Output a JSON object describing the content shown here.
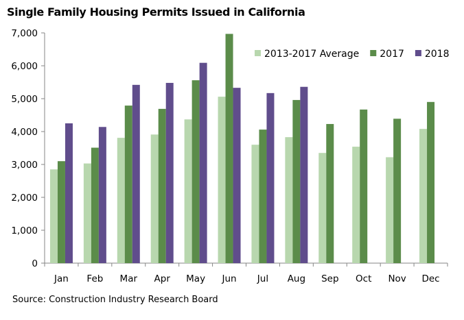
{
  "chart_data": {
    "type": "bar",
    "title": "Single Family Housing Permits Issued in California",
    "source": "Source: Construction Industry Research Board",
    "categories": [
      "Jan",
      "Feb",
      "Mar",
      "Apr",
      "May",
      "Jun",
      "Jul",
      "Aug",
      "Sep",
      "Oct",
      "Nov",
      "Dec"
    ],
    "series": [
      {
        "name": "2013-2017 Average",
        "color": "#b8d7ae",
        "values": [
          2850,
          3030,
          3810,
          3910,
          4370,
          5060,
          3600,
          3830,
          3350,
          3540,
          3220,
          4080
        ]
      },
      {
        "name": "2017",
        "color": "#5b8c4a",
        "values": [
          3100,
          3510,
          4790,
          4690,
          5560,
          6970,
          4060,
          4960,
          4230,
          4670,
          4390,
          4900
        ]
      },
      {
        "name": "2018",
        "color": "#604d8c",
        "values": [
          4250,
          4140,
          5420,
          5480,
          6090,
          5330,
          5170,
          5360,
          null,
          null,
          null,
          null
        ]
      }
    ],
    "ylim": [
      0,
      7000
    ],
    "yticks": [
      0,
      1000,
      2000,
      3000,
      4000,
      5000,
      6000,
      7000
    ],
    "ytick_labels": [
      "0",
      "1,000",
      "2,000",
      "3,000",
      "4,000",
      "5,000",
      "6,000",
      "7,000"
    ],
    "xlabel": "",
    "ylabel": "",
    "grid": false,
    "legend": "top-right"
  }
}
